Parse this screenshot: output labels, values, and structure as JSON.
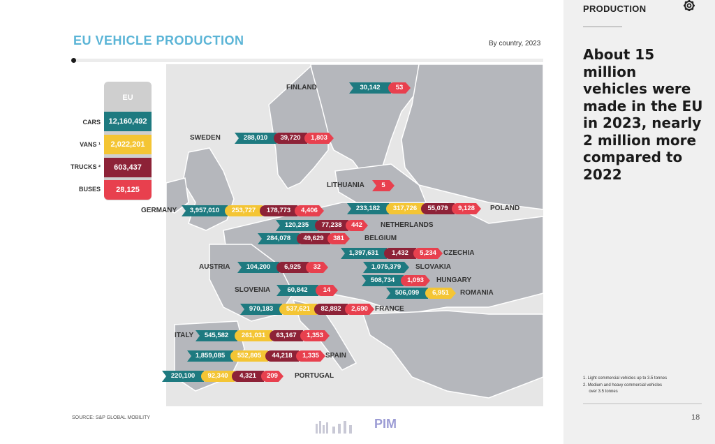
{
  "header": {
    "title": "EU VEHICLE PRODUCTION",
    "subtitle": "By country, 2023"
  },
  "side_panel": {
    "section_label": "PRODUCTION",
    "headline_lines": [
      "About 15 million",
      "vehicles were",
      "made in the EU",
      "in 2023, nearly",
      "2 million more",
      "compared to 2022"
    ],
    "footnotes": [
      "1.  Light commercial vehicles up to 3.5 tonnes",
      "2.  Medium and heavy commercial vehicles",
      "     over 3.5 tonnes"
    ],
    "page_number": "18"
  },
  "source": "SOURCE: S&P GLOBAL MOBILITY",
  "logo_text": "PIM",
  "colors": {
    "cars": "#1e7a80",
    "vans": "#f4c534",
    "trucks": "#8d2237",
    "buses": "#e8404e",
    "land": "#b5b7bc",
    "sea": "#e6e6e6",
    "title": "#5ab4d6"
  },
  "icons": [
    "gear-icon"
  ],
  "chart_data": {
    "type": "table",
    "title": "EU VEHICLE PRODUCTION",
    "subtitle": "By country, 2023",
    "categories": [
      "CARS",
      "VANS",
      "TRUCKS",
      "BUSES"
    ],
    "category_labels": [
      "CARS",
      "VANS ¹",
      "TRUCKS ²",
      "BUSES"
    ],
    "eu_total": {
      "label": "EU",
      "values": [
        "12,160,492",
        "2,022,201",
        "603,437",
        "28,125"
      ]
    },
    "countries": [
      {
        "name": "FINLAND",
        "values": {
          "cars": "30,142",
          "buses": "53"
        }
      },
      {
        "name": "SWEDEN",
        "values": {
          "cars": "288,010",
          "trucks": "39,720",
          "buses": "1,803"
        }
      },
      {
        "name": "LITHUANIA",
        "values": {
          "buses": "5"
        }
      },
      {
        "name": "GERMANY",
        "values": {
          "cars": "3,957,010",
          "vans": "253,727",
          "trucks": "178,773",
          "buses": "4,406"
        }
      },
      {
        "name": "POLAND",
        "values": {
          "cars": "233,182",
          "vans": "317,726",
          "trucks": "55,079",
          "buses": "9,128"
        }
      },
      {
        "name": "NETHERLANDS",
        "values": {
          "cars": "120,235",
          "trucks": "77,238",
          "buses": "442"
        }
      },
      {
        "name": "BELGIUM",
        "values": {
          "cars": "284,078",
          "trucks": "49,629",
          "buses": "381"
        }
      },
      {
        "name": "CZECHIA",
        "values": {
          "cars": "1,397,631",
          "trucks": "1,432",
          "buses": "5,234"
        }
      },
      {
        "name": "AUSTRIA",
        "values": {
          "cars": "104,200",
          "trucks": "6,925",
          "buses": "32"
        }
      },
      {
        "name": "SLOVAKIA",
        "values": {
          "cars": "1,075,379"
        }
      },
      {
        "name": "HUNGARY",
        "values": {
          "cars": "508,734",
          "buses": "1,093"
        }
      },
      {
        "name": "SLOVENIA",
        "values": {
          "cars": "60,842",
          "buses": "14"
        }
      },
      {
        "name": "ROMANIA",
        "values": {
          "cars": "506,099",
          "vans": "6,951"
        }
      },
      {
        "name": "FRANCE",
        "values": {
          "cars": "970,183",
          "vans": "537,621",
          "trucks": "82,882",
          "buses": "2,690"
        }
      },
      {
        "name": "ITALY",
        "values": {
          "cars": "545,582",
          "vans": "261,031",
          "trucks": "63,167",
          "buses": "1,353"
        }
      },
      {
        "name": "SPAIN",
        "values": {
          "cars": "1,859,085",
          "vans": "552,805",
          "trucks": "44,218",
          "buses": "1,335"
        }
      },
      {
        "name": "PORTUGAL",
        "values": {
          "cars": "220,100",
          "vans": "92,340",
          "trucks": "4,321",
          "buses": "209"
        }
      }
    ]
  }
}
